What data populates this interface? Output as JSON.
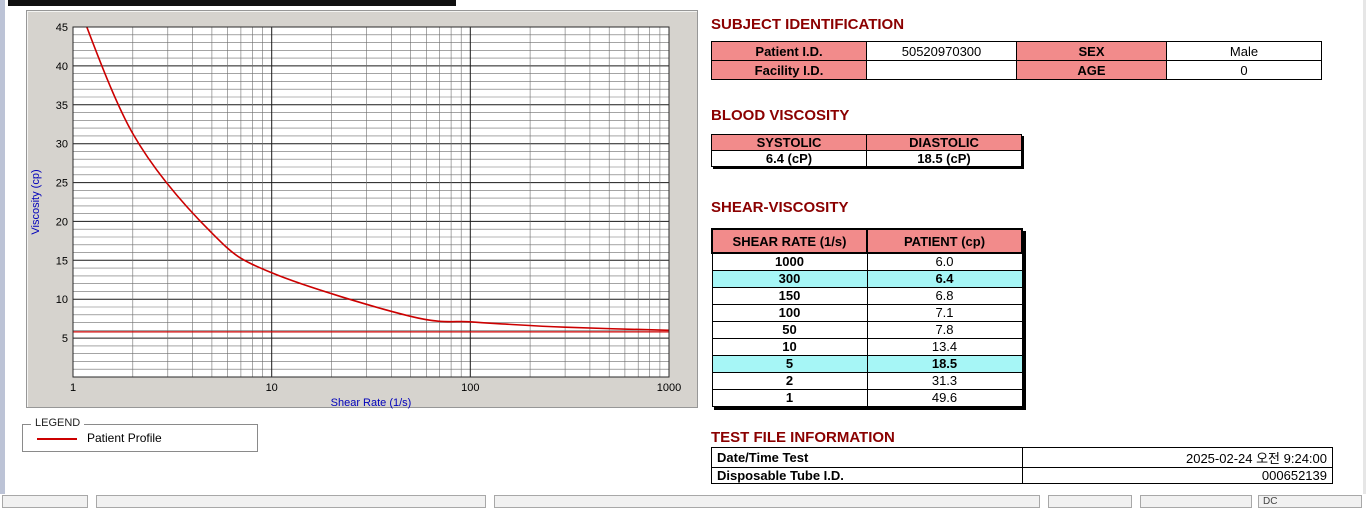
{
  "chart_data": {
    "type": "line",
    "title": "",
    "xlabel": "Shear Rate (1/s)",
    "ylabel": "Viscosity (cp)",
    "xscale": "log",
    "xlim": [
      1,
      1000
    ],
    "ylim": [
      0,
      45
    ],
    "xticks": [
      1,
      10,
      100,
      1000
    ],
    "yticks": [
      5,
      10,
      15,
      20,
      25,
      30,
      35,
      40,
      45
    ],
    "grid": "on-log-minor",
    "legend_position": "bottom-left-groupbox",
    "series": [
      {
        "name": "Patient Profile",
        "color": "#CC0000",
        "x": [
          1,
          2,
          5,
          10,
          50,
          100,
          150,
          300,
          1000
        ],
        "y": [
          49.6,
          31.3,
          18.5,
          13.4,
          7.8,
          7.1,
          6.8,
          6.4,
          6.0
        ]
      }
    ],
    "baseline_y": 5.8
  },
  "legend": {
    "box_label": "LEGEND",
    "entries": [
      {
        "label": "Patient Profile",
        "color": "#CC0000"
      }
    ]
  },
  "subject": {
    "heading": "SUBJECT IDENTIFICATION",
    "rows": [
      {
        "label1": "Patient I.D.",
        "value1": "50520970300",
        "label2": "SEX",
        "value2": "Male"
      },
      {
        "label1": "Facility I.D.",
        "value1": "",
        "label2": "AGE",
        "value2": "0"
      }
    ]
  },
  "blood_viscosity": {
    "heading": "BLOOD VISCOSITY",
    "columns": [
      "SYSTOLIC",
      "DIASTOLIC"
    ],
    "values": [
      "6.4 (cP)",
      "18.5 (cP)"
    ]
  },
  "shear_viscosity": {
    "heading": "SHEAR-VISCOSITY",
    "columns": [
      "SHEAR RATE (1/s)",
      "PATIENT (cp)"
    ],
    "rows": [
      {
        "rate": "1000",
        "value": "6.0",
        "highlight": false
      },
      {
        "rate": "300",
        "value": "6.4",
        "highlight": true
      },
      {
        "rate": "150",
        "value": "6.8",
        "highlight": false
      },
      {
        "rate": "100",
        "value": "7.1",
        "highlight": false
      },
      {
        "rate": "50",
        "value": "7.8",
        "highlight": false
      },
      {
        "rate": "10",
        "value": "13.4",
        "highlight": false
      },
      {
        "rate": "5",
        "value": "18.5",
        "highlight": true
      },
      {
        "rate": "2",
        "value": "31.3",
        "highlight": false
      },
      {
        "rate": "1",
        "value": "49.6",
        "highlight": false
      }
    ]
  },
  "test_file": {
    "heading": "TEST FILE INFORMATION",
    "rows": [
      {
        "label": "Date/Time Test",
        "value": "2025-02-24  오전 9:24:00"
      },
      {
        "label": "Disposable Tube I.D.",
        "value": "000652139"
      }
    ]
  },
  "taskbar": {
    "segments": [
      "",
      "",
      "",
      "",
      "",
      "DC"
    ]
  },
  "colors": {
    "heading": "#8B0000",
    "pink": "#F28B8B",
    "cyan": "#A6F6F6",
    "curve": "#CC0000",
    "axis": "#0000BB",
    "panel": "#D6D3CE"
  }
}
